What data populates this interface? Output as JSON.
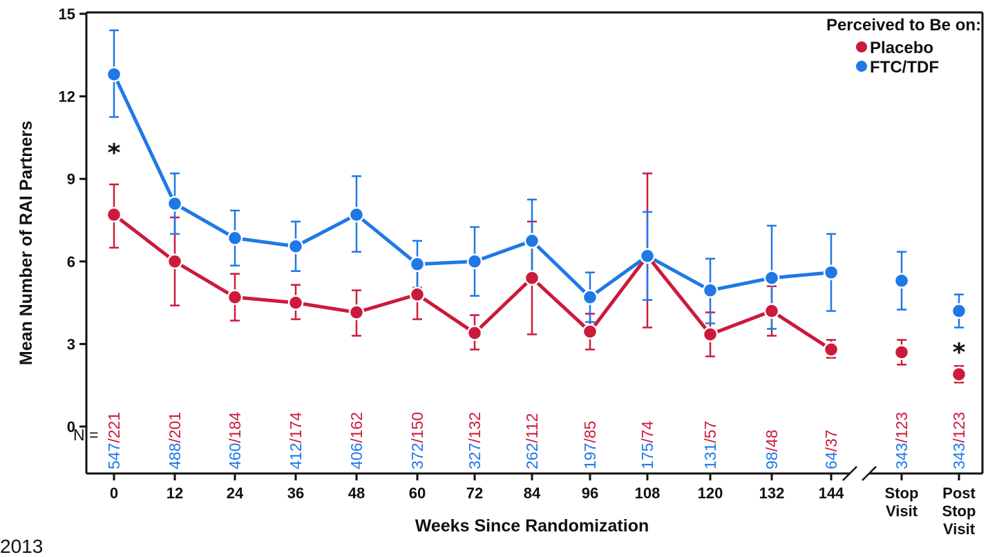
{
  "chart_data": {
    "type": "line",
    "xlabel": "Weeks Since Randomization",
    "ylabel": "Mean Number of RAI Partners",
    "ylim": [
      0,
      15
    ],
    "yticks": [
      0,
      3,
      6,
      9,
      12,
      15
    ],
    "categories": [
      "0",
      "12",
      "24",
      "36",
      "48",
      "60",
      "72",
      "84",
      "96",
      "108",
      "120",
      "132",
      "144",
      "Stop Visit",
      "Post Stop Visit"
    ],
    "category_lines": [
      [
        "0"
      ],
      [
        "12"
      ],
      [
        "24"
      ],
      [
        "36"
      ],
      [
        "48"
      ],
      [
        "60"
      ],
      [
        "72"
      ],
      [
        "84"
      ],
      [
        "96"
      ],
      [
        "108"
      ],
      [
        "120"
      ],
      [
        "132"
      ],
      [
        "144"
      ],
      [
        "Stop",
        "Visit"
      ],
      [
        "Post",
        "Stop",
        "Visit"
      ]
    ],
    "axis_break_after": "144",
    "legend": {
      "title": "Perceived to Be on:",
      "position": "top-right"
    },
    "series": [
      {
        "name": "Placebo",
        "color": "#cc1a3c",
        "values": [
          7.7,
          6.0,
          4.7,
          4.5,
          4.15,
          4.8,
          3.4,
          5.4,
          3.45,
          6.2,
          3.35,
          4.2,
          2.8,
          2.7,
          1.9
        ],
        "err_low": [
          6.5,
          4.4,
          3.85,
          3.9,
          3.3,
          3.9,
          2.8,
          3.35,
          2.8,
          3.6,
          2.55,
          3.3,
          2.5,
          2.25,
          1.6
        ],
        "err_high": [
          8.8,
          7.6,
          5.55,
          5.15,
          4.95,
          5.7,
          4.05,
          7.45,
          4.1,
          9.2,
          4.15,
          5.1,
          3.15,
          3.15,
          2.2
        ],
        "connected": 13
      },
      {
        "name": "FTC/TDF",
        "color": "#1f78e6",
        "values": [
          12.8,
          8.1,
          6.85,
          6.55,
          7.7,
          5.9,
          6.0,
          6.75,
          4.7,
          6.2,
          4.95,
          5.4,
          5.6,
          5.3,
          4.2
        ],
        "err_low": [
          11.25,
          7.0,
          5.85,
          5.65,
          6.35,
          5.05,
          4.75,
          5.3,
          3.8,
          4.6,
          3.75,
          3.55,
          4.2,
          4.25,
          3.6
        ],
        "err_high": [
          14.4,
          9.2,
          7.85,
          7.45,
          9.1,
          6.75,
          7.25,
          8.25,
          5.6,
          7.8,
          6.1,
          7.3,
          7.0,
          6.35,
          4.8
        ],
        "connected": 13
      }
    ],
    "n_prefix": "N =",
    "n_counts": [
      {
        "ftc": "547",
        "placebo": "221"
      },
      {
        "ftc": "488",
        "placebo": "201"
      },
      {
        "ftc": "460",
        "placebo": "184"
      },
      {
        "ftc": "412",
        "placebo": "174"
      },
      {
        "ftc": "406",
        "placebo": "162"
      },
      {
        "ftc": "372",
        "placebo": "150"
      },
      {
        "ftc": "327",
        "placebo": "132"
      },
      {
        "ftc": "262",
        "placebo": "112"
      },
      {
        "ftc": "197",
        "placebo": "85"
      },
      {
        "ftc": "175",
        "placebo": "74"
      },
      {
        "ftc": "131",
        "placebo": "57"
      },
      {
        "ftc": "98",
        "placebo": "48"
      },
      {
        "ftc": "64",
        "placebo": "37"
      },
      {
        "ftc": "343",
        "placebo": "123"
      },
      {
        "ftc": "343",
        "placebo": "123"
      }
    ],
    "annotations": [
      {
        "text": "*",
        "category": "0",
        "y": 10.0
      },
      {
        "text": "*",
        "category": "Post Stop Visit",
        "y": 2.75
      }
    ]
  },
  "footnote": "2013"
}
